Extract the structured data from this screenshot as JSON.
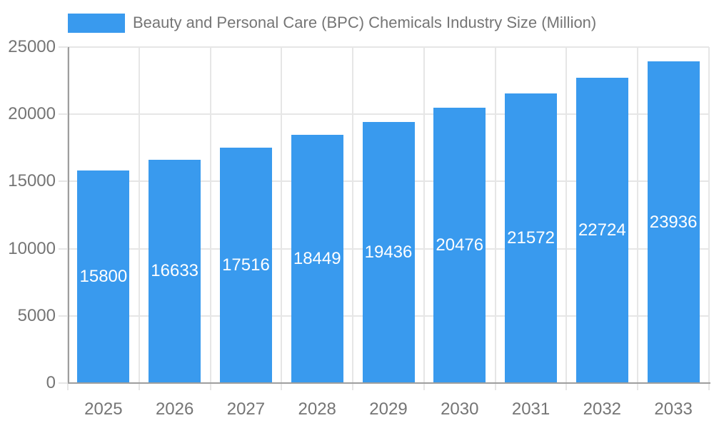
{
  "chart_data": {
    "type": "bar",
    "title": "Beauty and Personal Care (BPC) Chemicals Industry Size (Million)",
    "legend_label": "Beauty and Personal Care (BPC) Chemicals Industry Size (Million)",
    "legend_position": "top-left",
    "categories": [
      "2025",
      "2026",
      "2027",
      "2028",
      "2029",
      "2030",
      "2031",
      "2032",
      "2033"
    ],
    "values": [
      15800,
      16633,
      17516,
      18449,
      19436,
      20476,
      21572,
      22724,
      23936
    ],
    "xlabel": "",
    "ylabel": "",
    "ylim": [
      0,
      25000
    ],
    "yticks": [
      0,
      5000,
      10000,
      15000,
      20000,
      25000
    ],
    "grid": "both",
    "value_labels_inside_bars": true,
    "colors": {
      "bar": "#399aee",
      "grid": "#e6e6e6",
      "axis": "#9e9e9e",
      "text": "#757575",
      "value_label": "#ffffff",
      "background": "#ffffff"
    }
  }
}
